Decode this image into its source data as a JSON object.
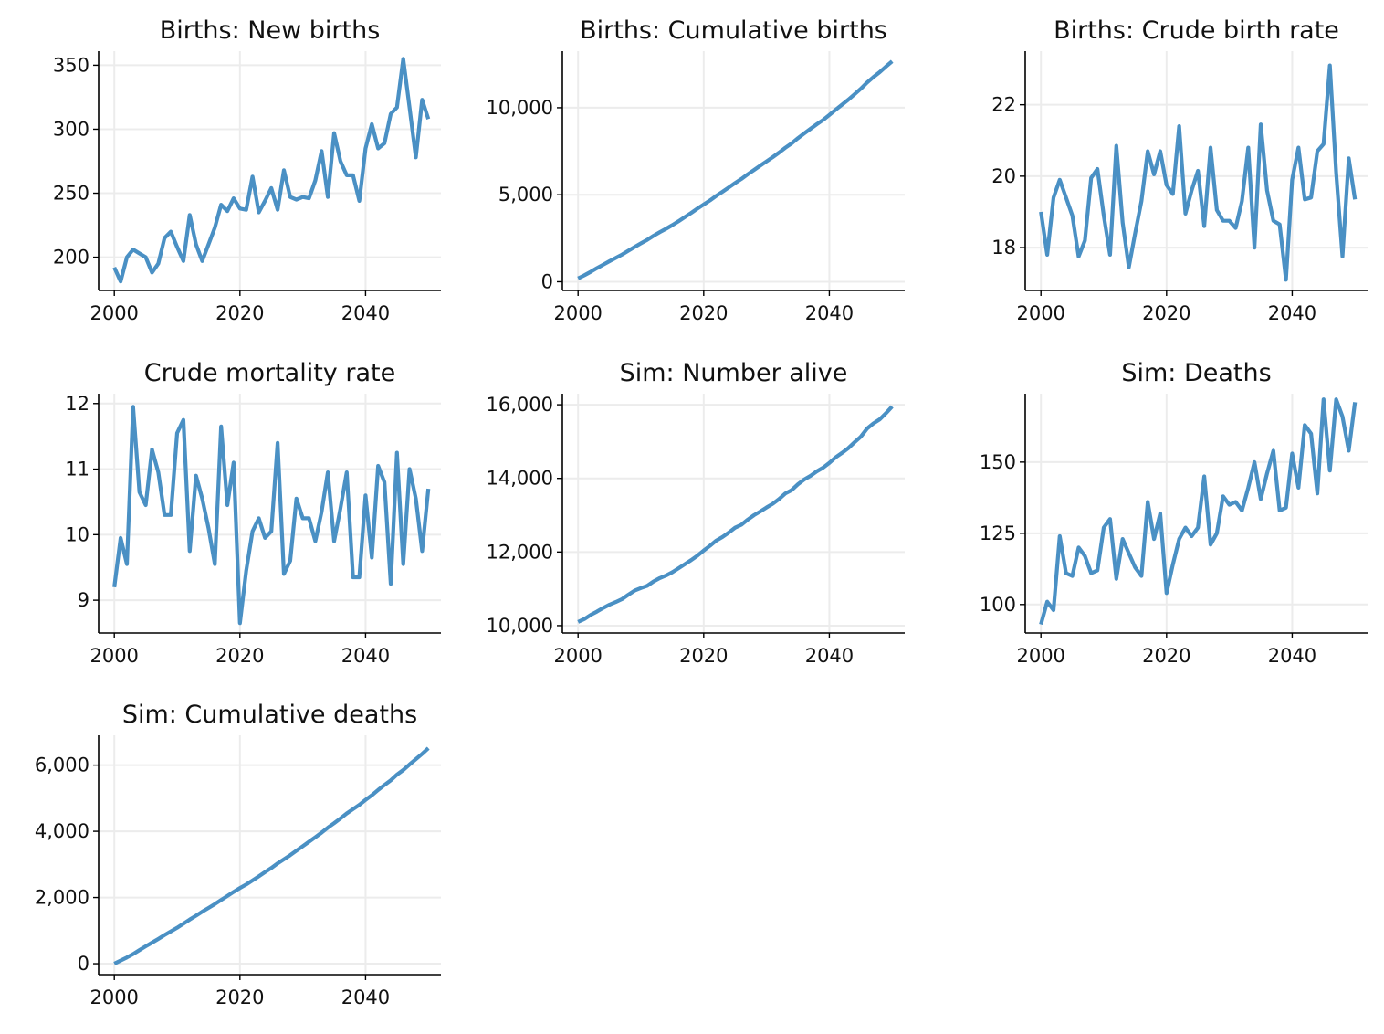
{
  "colors": {
    "line": "#4a90c4",
    "grid": "#ececec",
    "axis": "#000000"
  },
  "chart_data": [
    {
      "type": "line",
      "title": "Births: New births",
      "xlim": [
        1997.5,
        2052
      ],
      "ylim": [
        174,
        361
      ],
      "xticks": [
        2000,
        2020,
        2040
      ],
      "xticklabels": [
        "2000",
        "2020",
        "2040"
      ],
      "yticks": [
        200,
        250,
        300,
        350
      ],
      "yticklabels": [
        "200",
        "250",
        "300",
        "350"
      ],
      "grid": true,
      "x": [
        2000,
        2001,
        2002,
        2003,
        2004,
        2005,
        2006,
        2007,
        2008,
        2009,
        2010,
        2011,
        2012,
        2013,
        2014,
        2015,
        2016,
        2017,
        2018,
        2019,
        2020,
        2021,
        2022,
        2023,
        2024,
        2025,
        2026,
        2027,
        2028,
        2029,
        2030,
        2031,
        2032,
        2033,
        2034,
        2035,
        2036,
        2037,
        2038,
        2039,
        2040,
        2041,
        2042,
        2043,
        2044,
        2045,
        2046,
        2047,
        2048,
        2049,
        2050
      ],
      "series": [
        {
          "values": [
            192,
            181,
            200,
            206,
            203,
            200,
            188,
            195,
            215,
            220,
            208,
            197,
            233,
            210,
            197,
            210,
            223,
            241,
            236,
            246,
            238,
            237,
            263,
            235,
            244,
            254,
            237,
            268,
            247,
            245,
            247,
            246,
            260,
            283,
            247,
            297,
            275,
            264,
            264,
            244,
            285,
            304,
            285,
            289,
            312,
            317,
            355,
            317,
            278,
            323,
            308
          ]
        }
      ]
    },
    {
      "type": "line",
      "title": "Births: Cumulative births",
      "xlim": [
        1997.5,
        2052
      ],
      "ylim": [
        -500,
        13250
      ],
      "xticks": [
        2000,
        2020,
        2040
      ],
      "xticklabels": [
        "2000",
        "2020",
        "2040"
      ],
      "yticks": [
        0,
        5000,
        10000
      ],
      "yticklabels": [
        "0",
        "5,000",
        "10,000"
      ],
      "grid": true,
      "x": [
        2000,
        2001,
        2002,
        2003,
        2004,
        2005,
        2006,
        2007,
        2008,
        2009,
        2010,
        2011,
        2012,
        2013,
        2014,
        2015,
        2016,
        2017,
        2018,
        2019,
        2020,
        2021,
        2022,
        2023,
        2024,
        2025,
        2026,
        2027,
        2028,
        2029,
        2030,
        2031,
        2032,
        2033,
        2034,
        2035,
        2036,
        2037,
        2038,
        2039,
        2040,
        2041,
        2042,
        2043,
        2044,
        2045,
        2046,
        2047,
        2048,
        2049,
        2050
      ],
      "series": [
        {
          "values": [
            192,
            373,
            573,
            779,
            982,
            1182,
            1370,
            1565,
            1780,
            2000,
            2208,
            2405,
            2638,
            2848,
            3045,
            3255,
            3478,
            3719,
            3955,
            4201,
            4439,
            4676,
            4939,
            5174,
            5418,
            5672,
            5909,
            6177,
            6424,
            6669,
            6916,
            7162,
            7422,
            7705,
            7952,
            8249,
            8524,
            8788,
            9052,
            9296,
            9581,
            9885,
            10170,
            10459,
            10771,
            11088,
            11443,
            11760,
            12038,
            12361,
            12669
          ]
        }
      ]
    },
    {
      "type": "line",
      "title": "Births: Crude birth rate",
      "xlim": [
        1997.5,
        2052
      ],
      "ylim": [
        16.8,
        23.5
      ],
      "xticks": [
        2000,
        2020,
        2040
      ],
      "xticklabels": [
        "2000",
        "2020",
        "2040"
      ],
      "yticks": [
        18,
        20,
        22
      ],
      "yticklabels": [
        "18",
        "20",
        "22"
      ],
      "grid": true,
      "x": [
        2000,
        2001,
        2002,
        2003,
        2004,
        2005,
        2006,
        2007,
        2008,
        2009,
        2010,
        2011,
        2012,
        2013,
        2014,
        2015,
        2016,
        2017,
        2018,
        2019,
        2020,
        2021,
        2022,
        2023,
        2024,
        2025,
        2026,
        2027,
        2028,
        2029,
        2030,
        2031,
        2032,
        2033,
        2034,
        2035,
        2036,
        2037,
        2038,
        2039,
        2040,
        2041,
        2042,
        2043,
        2044,
        2045,
        2046,
        2047,
        2048,
        2049,
        2050
      ],
      "series": [
        {
          "values": [
            19.0,
            17.8,
            19.4,
            19.9,
            19.4,
            18.9,
            17.75,
            18.2,
            19.95,
            20.2,
            18.9,
            17.8,
            20.85,
            18.7,
            17.45,
            18.4,
            19.3,
            20.7,
            20.05,
            20.7,
            19.75,
            19.5,
            21.4,
            18.95,
            19.6,
            20.15,
            18.6,
            20.8,
            19.05,
            18.75,
            18.75,
            18.55,
            19.3,
            20.8,
            18.0,
            21.45,
            19.6,
            18.75,
            18.65,
            17.1,
            19.9,
            20.8,
            19.35,
            19.4,
            20.7,
            20.9,
            23.1,
            20.1,
            17.75,
            20.5,
            19.35
          ]
        }
      ]
    },
    {
      "type": "line",
      "title": "Crude mortality rate",
      "xlim": [
        1997.5,
        2052
      ],
      "ylim": [
        8.5,
        12.15
      ],
      "xticks": [
        2000,
        2020,
        2040
      ],
      "xticklabels": [
        "2000",
        "2020",
        "2040"
      ],
      "yticks": [
        9,
        10,
        11,
        12
      ],
      "yticklabels": [
        "9",
        "10",
        "11",
        "12"
      ],
      "grid": true,
      "x": [
        2000,
        2001,
        2002,
        2003,
        2004,
        2005,
        2006,
        2007,
        2008,
        2009,
        2010,
        2011,
        2012,
        2013,
        2014,
        2015,
        2016,
        2017,
        2018,
        2019,
        2020,
        2021,
        2022,
        2023,
        2024,
        2025,
        2026,
        2027,
        2028,
        2029,
        2030,
        2031,
        2032,
        2033,
        2034,
        2035,
        2036,
        2037,
        2038,
        2039,
        2040,
        2041,
        2042,
        2043,
        2044,
        2045,
        2046,
        2047,
        2048,
        2049,
        2050
      ],
      "series": [
        {
          "values": [
            9.2,
            9.95,
            9.55,
            11.95,
            10.65,
            10.45,
            11.3,
            10.95,
            10.3,
            10.3,
            11.55,
            11.75,
            9.75,
            10.9,
            10.55,
            10.1,
            9.55,
            11.65,
            10.45,
            11.1,
            8.65,
            9.45,
            10.05,
            10.25,
            9.95,
            10.05,
            11.4,
            9.4,
            9.6,
            10.55,
            10.25,
            10.25,
            9.9,
            10.35,
            10.95,
            9.9,
            10.4,
            10.95,
            9.35,
            9.35,
            10.6,
            9.65,
            11.05,
            10.8,
            9.25,
            11.25,
            9.55,
            11.0,
            10.55,
            9.75,
            10.7
          ]
        }
      ]
    },
    {
      "type": "line",
      "title": "Sim: Number alive",
      "xlim": [
        1997.5,
        2052
      ],
      "ylim": [
        9800,
        16300
      ],
      "xticks": [
        2000,
        2020,
        2040
      ],
      "xticklabels": [
        "2000",
        "2020",
        "2040"
      ],
      "yticks": [
        10000,
        12000,
        14000,
        16000
      ],
      "yticklabels": [
        "10,000",
        "12,000",
        "14,000",
        "16,000"
      ],
      "grid": true,
      "x": [
        2000,
        2001,
        2002,
        2003,
        2004,
        2005,
        2006,
        2007,
        2008,
        2009,
        2010,
        2011,
        2012,
        2013,
        2014,
        2015,
        2016,
        2017,
        2018,
        2019,
        2020,
        2021,
        2022,
        2023,
        2024,
        2025,
        2026,
        2027,
        2028,
        2029,
        2030,
        2031,
        2032,
        2033,
        2034,
        2035,
        2036,
        2037,
        2038,
        2039,
        2040,
        2041,
        2042,
        2043,
        2044,
        2045,
        2046,
        2047,
        2048,
        2049,
        2050
      ],
      "series": [
        {
          "values": [
            10100,
            10180,
            10290,
            10380,
            10480,
            10570,
            10640,
            10720,
            10840,
            10950,
            11020,
            11080,
            11200,
            11290,
            11360,
            11450,
            11560,
            11670,
            11780,
            11900,
            12040,
            12170,
            12310,
            12410,
            12530,
            12660,
            12740,
            12880,
            13000,
            13100,
            13210,
            13310,
            13440,
            13590,
            13680,
            13840,
            13970,
            14070,
            14190,
            14290,
            14420,
            14570,
            14690,
            14820,
            14980,
            15130,
            15350,
            15490,
            15600,
            15770,
            15950
          ]
        }
      ]
    },
    {
      "type": "line",
      "title": "Sim: Deaths",
      "xlim": [
        1997.5,
        2052
      ],
      "ylim": [
        90,
        174
      ],
      "xticks": [
        2000,
        2020,
        2040
      ],
      "xticklabels": [
        "2000",
        "2020",
        "2040"
      ],
      "yticks": [
        100,
        125,
        150
      ],
      "yticklabels": [
        "100",
        "125",
        "150"
      ],
      "grid": true,
      "x": [
        2000,
        2001,
        2002,
        2003,
        2004,
        2005,
        2006,
        2007,
        2008,
        2009,
        2010,
        2011,
        2012,
        2013,
        2014,
        2015,
        2016,
        2017,
        2018,
        2019,
        2020,
        2021,
        2022,
        2023,
        2024,
        2025,
        2026,
        2027,
        2028,
        2029,
        2030,
        2031,
        2032,
        2033,
        2034,
        2035,
        2036,
        2037,
        2038,
        2039,
        2040,
        2041,
        2042,
        2043,
        2044,
        2045,
        2046,
        2047,
        2048,
        2049,
        2050
      ],
      "series": [
        {
          "values": [
            93,
            101,
            98,
            124,
            111,
            110,
            120,
            117,
            111,
            112,
            127,
            130,
            109,
            123,
            118,
            113,
            110,
            136,
            123,
            132,
            104,
            114,
            123,
            127,
            124,
            127,
            145,
            121,
            125,
            138,
            135,
            136,
            133,
            141,
            150,
            137,
            146,
            154,
            133,
            134,
            153,
            141,
            163,
            160,
            139,
            172,
            147,
            172,
            166,
            154,
            171
          ]
        }
      ]
    },
    {
      "type": "line",
      "title": "Sim: Cumulative deaths",
      "xlim": [
        1997.5,
        2052
      ],
      "ylim": [
        -330,
        6900
      ],
      "xticks": [
        2000,
        2020,
        2040
      ],
      "xticklabels": [
        "2000",
        "2020",
        "2040"
      ],
      "yticks": [
        0,
        2000,
        4000,
        6000
      ],
      "yticklabels": [
        "0",
        "2,000",
        "4,000",
        "6,000"
      ],
      "grid": true,
      "x": [
        2000,
        2001,
        2002,
        2003,
        2004,
        2005,
        2006,
        2007,
        2008,
        2009,
        2010,
        2011,
        2012,
        2013,
        2014,
        2015,
        2016,
        2017,
        2018,
        2019,
        2020,
        2021,
        2022,
        2023,
        2024,
        2025,
        2026,
        2027,
        2028,
        2029,
        2030,
        2031,
        2032,
        2033,
        2034,
        2035,
        2036,
        2037,
        2038,
        2039,
        2040,
        2041,
        2042,
        2043,
        2044,
        2045,
        2046,
        2047,
        2048,
        2049,
        2050
      ],
      "series": [
        {
          "values": [
            0,
            95,
            190,
            290,
            410,
            525,
            635,
            750,
            865,
            975,
            1085,
            1210,
            1335,
            1450,
            1570,
            1685,
            1800,
            1925,
            2045,
            2170,
            2285,
            2395,
            2515,
            2640,
            2765,
            2890,
            3030,
            3155,
            3280,
            3415,
            3550,
            3685,
            3820,
            3960,
            4110,
            4245,
            4390,
            4540,
            4670,
            4800,
            4950,
            5090,
            5250,
            5400,
            5540,
            5710,
            5850,
            6020,
            6180,
            6340,
            6510
          ]
        }
      ]
    }
  ]
}
